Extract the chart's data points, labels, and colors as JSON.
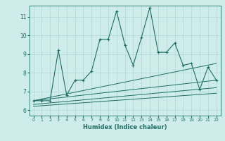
{
  "xlabel": "Humidex (Indice chaleur)",
  "bg_color": "#cdecea",
  "line_color": "#1e6e64",
  "grid_color": "#aed8d4",
  "xlim": [
    -0.5,
    22.5
  ],
  "ylim": [
    5.7,
    11.6
  ],
  "xticks": [
    0,
    1,
    2,
    3,
    4,
    5,
    6,
    7,
    8,
    9,
    10,
    11,
    12,
    13,
    14,
    15,
    16,
    17,
    18,
    19,
    20,
    21,
    22
  ],
  "yticks": [
    6,
    7,
    8,
    9,
    10,
    11
  ],
  "series1_x": [
    0,
    1,
    2,
    3,
    4,
    5,
    6,
    7,
    8,
    9,
    10,
    11,
    12,
    13,
    14,
    15,
    16,
    17,
    18,
    19,
    20,
    21,
    22
  ],
  "series1_y": [
    6.5,
    6.5,
    6.5,
    9.2,
    6.8,
    7.6,
    7.6,
    8.1,
    9.8,
    9.8,
    11.3,
    9.5,
    8.4,
    9.9,
    11.5,
    9.1,
    9.1,
    9.6,
    8.4,
    8.5,
    7.1,
    8.3,
    7.6
  ],
  "series2_x": [
    0,
    22
  ],
  "series2_y": [
    6.5,
    8.5
  ],
  "series3_x": [
    0,
    22
  ],
  "series3_y": [
    6.5,
    7.6
  ],
  "series4_x": [
    0,
    22
  ],
  "series4_y": [
    6.3,
    7.2
  ],
  "series5_x": [
    0,
    22
  ],
  "series5_y": [
    6.2,
    6.9
  ]
}
